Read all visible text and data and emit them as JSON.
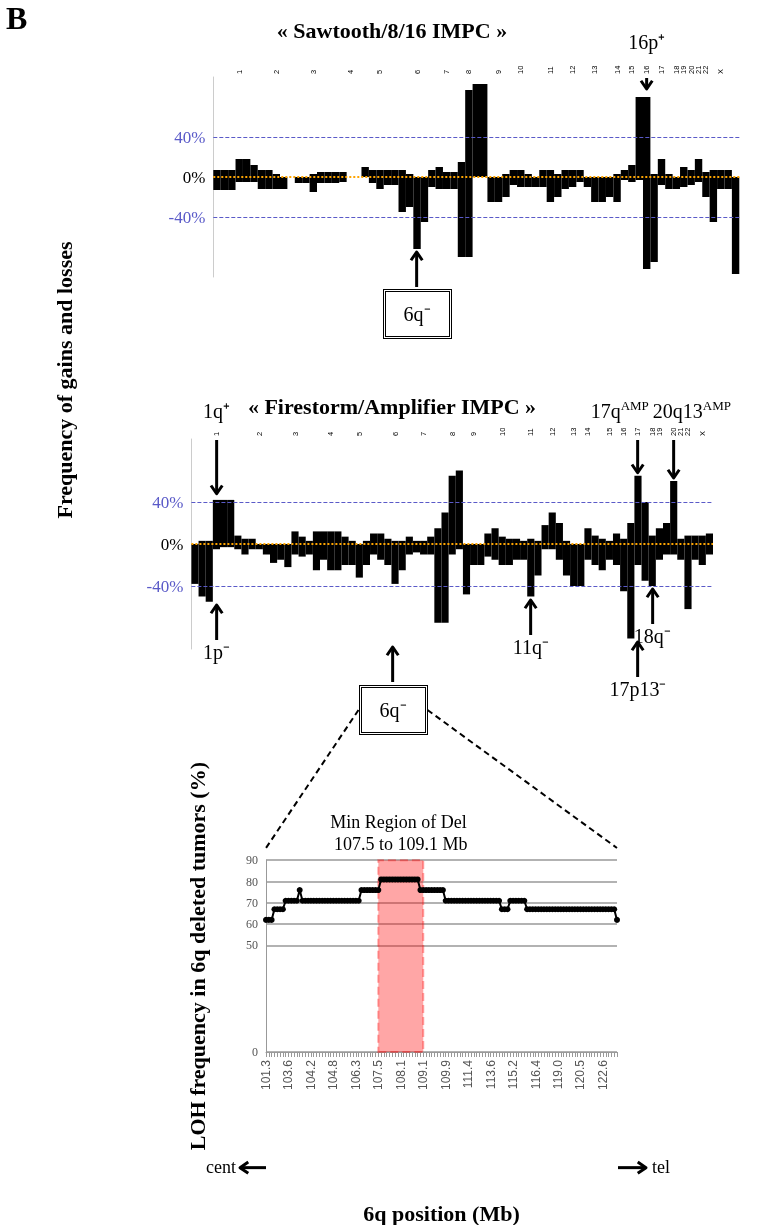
{
  "chart_data": [
    {
      "type": "bar",
      "title": "« Sawtooth/8/16 IMPC »",
      "ylabel": "Frequency of gains and losses",
      "stacked": true,
      "categories": [
        null,
        null,
        null,
        "1",
        null,
        null,
        null,
        null,
        "2",
        null,
        null,
        null,
        null,
        "3",
        null,
        null,
        null,
        null,
        "4",
        null,
        null,
        null,
        "5",
        null,
        null,
        null,
        null,
        "6",
        null,
        null,
        null,
        "7",
        null,
        null,
        "8",
        null,
        null,
        null,
        "9",
        null,
        null,
        "10",
        null,
        null,
        null,
        "11",
        null,
        null,
        "12",
        null,
        null,
        "13",
        null,
        null,
        "14",
        null,
        "15",
        null,
        "16",
        null,
        "17",
        null,
        "18",
        "19",
        "20",
        "21",
        "22",
        null,
        "X",
        null,
        null
      ],
      "series": [
        {
          "color": "#000000",
          "values": [
            7,
            7,
            7,
            18,
            18,
            12,
            7,
            7,
            3,
            0,
            0,
            0,
            0,
            3,
            5,
            5,
            5,
            5,
            0,
            0,
            10,
            7,
            7,
            7,
            7,
            7,
            3,
            0,
            0,
            7,
            10,
            5,
            5,
            15,
            87,
            93,
            93,
            0,
            0,
            3,
            7,
            7,
            3,
            0,
            7,
            7,
            3,
            7,
            7,
            7,
            0,
            0,
            0,
            0,
            3,
            7,
            12,
            80,
            80,
            3,
            18,
            3,
            0,
            10,
            7,
            18,
            5,
            7,
            7,
            7,
            0
          ]
        },
        {
          "color": "#000000",
          "values": [
            -13,
            -13,
            -13,
            -5,
            -5,
            -5,
            -12,
            -12,
            -12,
            -12,
            0,
            -6,
            -6,
            -15,
            -6,
            -6,
            -6,
            -5,
            0,
            0,
            0,
            -6,
            -12,
            -8,
            -8,
            -35,
            -30,
            -72,
            -45,
            -10,
            -12,
            -12,
            -12,
            -80,
            -80,
            0,
            0,
            -25,
            -25,
            -20,
            -8,
            -10,
            -10,
            -10,
            -10,
            -25,
            -20,
            -12,
            -10,
            -5,
            -10,
            -25,
            -25,
            -20,
            -25,
            -3,
            -5,
            -3,
            -92,
            -85,
            -8,
            -12,
            -12,
            -10,
            -8,
            -5,
            -20,
            -45,
            -12,
            -12,
            -97
          ]
        }
      ],
      "ylim": [
        -100,
        100
      ],
      "yticks": [
        {
          "value": 40,
          "label": "40%"
        },
        {
          "value": 0,
          "label": "0%"
        },
        {
          "value": -40,
          "label": "-40%"
        }
      ],
      "grid": false,
      "ref_lines": [
        {
          "axis": "y",
          "value": 40,
          "color": "#5a5ac8",
          "line_style": "dashed"
        },
        {
          "axis": "y",
          "value": -40,
          "color": "#5a5ac8",
          "line_style": "dashed"
        },
        {
          "axis": "y",
          "value": 0,
          "color": "#ffa500",
          "line_style": "dotted"
        }
      ],
      "annotations": [
        "B",
        {
          "text": "6q⁻",
          "x": "6",
          "y": -72
        },
        {
          "text": "16p⁺",
          "x": "16",
          "y": 85
        }
      ]
    },
    {
      "type": "bar",
      "title": "« Firestorm/Amplifier IMPC »",
      "stacked": true,
      "categories": [
        null,
        null,
        null,
        "1",
        null,
        null,
        null,
        null,
        null,
        "2",
        null,
        null,
        null,
        null,
        "3",
        null,
        null,
        null,
        null,
        "4",
        null,
        null,
        null,
        "5",
        null,
        null,
        null,
        null,
        "6",
        null,
        null,
        null,
        "7",
        null,
        null,
        null,
        "8",
        null,
        null,
        "9",
        null,
        null,
        null,
        "10",
        null,
        null,
        null,
        "11",
        null,
        null,
        "12",
        null,
        null,
        "13",
        null,
        "14",
        null,
        null,
        "15",
        null,
        "16",
        null,
        "17",
        null,
        "18",
        "19",
        null,
        "20",
        "21",
        "22",
        null,
        "X",
        null
      ],
      "series": [
        {
          "color": "#000000",
          "values": [
            0,
            3,
            3,
            42,
            42,
            42,
            8,
            5,
            5,
            0,
            0,
            0,
            0,
            0,
            12,
            7,
            3,
            12,
            12,
            12,
            12,
            7,
            3,
            0,
            3,
            10,
            10,
            5,
            3,
            3,
            7,
            3,
            3,
            7,
            15,
            30,
            65,
            70,
            0,
            0,
            0,
            10,
            15,
            7,
            5,
            5,
            3,
            5,
            3,
            18,
            30,
            20,
            3,
            0,
            0,
            15,
            8,
            5,
            3,
            10,
            5,
            20,
            65,
            40,
            8,
            15,
            20,
            60,
            5,
            8,
            8,
            8,
            10
          ]
        },
        {
          "color": "#000000",
          "values": [
            -38,
            -50,
            -55,
            -5,
            -3,
            -3,
            -5,
            -10,
            -5,
            -5,
            -10,
            -18,
            -15,
            -22,
            -10,
            -12,
            -10,
            -25,
            -15,
            -25,
            -25,
            -20,
            -20,
            -32,
            -20,
            -10,
            -15,
            -20,
            -38,
            -25,
            -10,
            -8,
            -10,
            -10,
            -75,
            -75,
            -10,
            -5,
            -48,
            -20,
            -20,
            -12,
            -15,
            -20,
            -20,
            -15,
            -15,
            -50,
            -30,
            -5,
            -5,
            -15,
            -30,
            -40,
            -40,
            -15,
            -20,
            -25,
            -15,
            -20,
            -45,
            -90,
            -20,
            -35,
            -40,
            -15,
            -10,
            -10,
            -15,
            -62,
            -15,
            -20,
            -10
          ]
        }
      ],
      "ylim": [
        -100,
        100
      ],
      "yticks": [
        {
          "value": 40,
          "label": "40%"
        },
        {
          "value": 0,
          "label": "0%"
        },
        {
          "value": -40,
          "label": "-40%"
        }
      ],
      "grid": false,
      "ref_lines": [
        {
          "axis": "y",
          "value": 40,
          "color": "#5a5ac8",
          "line_style": "dashed"
        },
        {
          "axis": "y",
          "value": -40,
          "color": "#5a5ac8",
          "line_style": "dashed"
        },
        {
          "axis": "y",
          "value": 0,
          "color": "#ffa500",
          "line_style": "dotted"
        }
      ],
      "annotations": [
        "6q⁻",
        {
          "text": "1q⁺",
          "x": "1",
          "y": 45
        },
        {
          "text": "17q$^{AMP}$",
          "x": "17",
          "y": 65
        },
        {
          "text": "20q13$^{AMP}$",
          "x": "20",
          "y": 60
        },
        {
          "text": "1p⁻",
          "x": "1",
          "y": -55
        },
        {
          "text": "11q⁻",
          "x": "11",
          "y": -50
        },
        {
          "text": "17p13⁻",
          "x": "17",
          "y": -90
        },
        {
          "text": "18q⁻",
          "x": "18",
          "y": -40
        }
      ]
    },
    {
      "type": "line",
      "xlabel": "6q position (Mb)",
      "ylabel": "LOH frequency in 6q deleted tumors (%)",
      "categories": [
        "101.3",
        null,
        null,
        null,
        null,
        null,
        null,
        null,
        "103.6",
        null,
        null,
        null,
        null,
        null,
        null,
        null,
        "104.2",
        null,
        null,
        null,
        null,
        null,
        null,
        null,
        "104.8",
        null,
        null,
        null,
        null,
        null,
        null,
        null,
        "106.3",
        null,
        null,
        null,
        null,
        null,
        null,
        null,
        "107.5",
        null,
        null,
        null,
        null,
        null,
        null,
        null,
        "108.1",
        null,
        null,
        null,
        null,
        null,
        null,
        null,
        "109.1",
        null,
        null,
        null,
        null,
        null,
        null,
        null,
        "109.9",
        null,
        null,
        null,
        null,
        null,
        null,
        null,
        "111.4",
        null,
        null,
        null,
        null,
        null,
        null,
        null,
        "113.6",
        null,
        null,
        null,
        null,
        null,
        null,
        null,
        "115.2",
        null,
        null,
        null,
        null,
        null,
        null,
        null,
        "116.4",
        null,
        null,
        null,
        null,
        null,
        null,
        null,
        "119.0",
        null,
        null,
        null,
        null,
        null,
        null,
        null,
        "120.5",
        null,
        null,
        null,
        null,
        null,
        null,
        null,
        "122.6",
        null,
        null,
        null,
        null,
        null
      ],
      "series": [
        {
          "color": "#000000",
          "values": [
            62,
            62,
            62,
            67,
            67,
            67,
            67,
            71,
            71,
            71,
            71,
            71,
            76,
            71,
            71,
            71,
            71,
            71,
            71,
            71,
            71,
            71,
            71,
            71,
            71,
            71,
            71,
            71,
            71,
            71,
            71,
            71,
            71,
            71,
            76,
            76,
            76,
            76,
            76,
            76,
            76,
            81,
            81,
            81,
            81,
            81,
            81,
            81,
            81,
            81,
            81,
            81,
            81,
            81,
            81,
            76,
            76,
            76,
            76,
            76,
            76,
            76,
            76,
            76,
            71,
            71,
            71,
            71,
            71,
            71,
            71,
            71,
            71,
            71,
            71,
            71,
            71,
            71,
            71,
            71,
            71,
            71,
            71,
            71,
            67,
            67,
            67,
            71,
            71,
            71,
            71,
            71,
            71,
            67,
            67,
            67,
            67,
            67,
            67,
            67,
            67,
            67,
            67,
            67,
            67,
            67,
            67,
            67,
            67,
            67,
            67,
            67,
            67,
            67,
            67,
            67,
            67,
            67,
            67,
            67,
            67,
            67,
            67,
            67,
            67,
            62
          ]
        }
      ],
      "ylim": [
        0,
        90
      ],
      "yticks": [
        0,
        50,
        60,
        70,
        80,
        90
      ],
      "grid": "y",
      "marker": "circle",
      "line_style": "solid",
      "bands": [
        {
          "axis": "x",
          "from": "107.5",
          "to": "109.1",
          "label": "Min Region of Del 107.5 to 109.1 Mb",
          "color": "#ff0000"
        }
      ],
      "annotations": [
        "cent",
        "tel"
      ]
    }
  ]
}
